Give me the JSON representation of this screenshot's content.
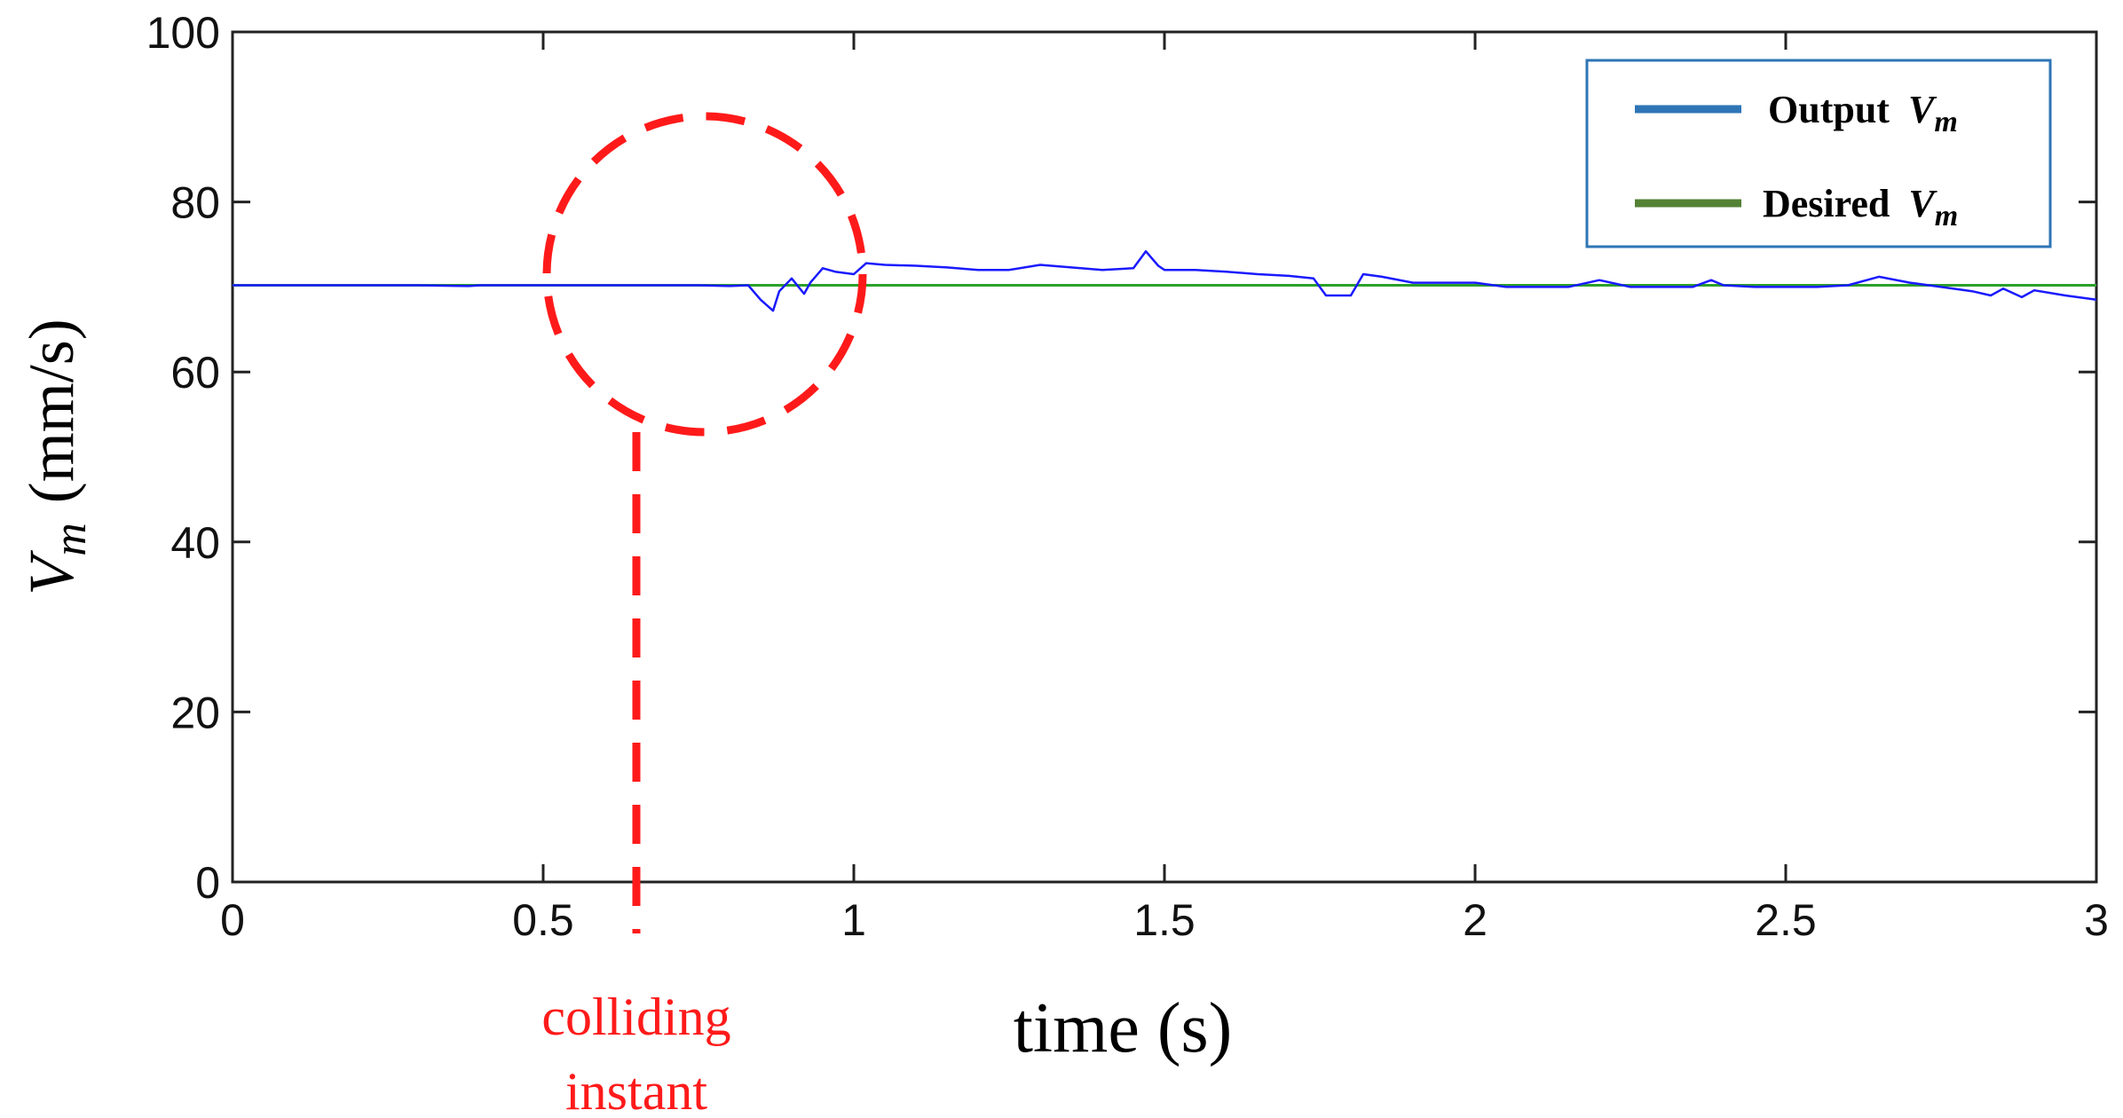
{
  "chart_data": {
    "type": "line",
    "xlabel": "time (s)",
    "ylabel": {
      "var": "V",
      "sub": "m",
      "unit": "(mm/s)"
    },
    "xlim": [
      0,
      3
    ],
    "ylim": [
      0,
      100
    ],
    "xticks": [
      0,
      0.5,
      1,
      1.5,
      2,
      2.5,
      3
    ],
    "xtick_labels": [
      "0",
      "0.5",
      "1",
      "1.5",
      "2",
      "2.5",
      "3"
    ],
    "yticks": [
      0,
      20,
      40,
      60,
      80,
      100
    ],
    "ytick_labels": [
      "0",
      "20",
      "40",
      "60",
      "80",
      "100"
    ],
    "grid": false,
    "legend_position": "top-right",
    "series": [
      {
        "name": "Output",
        "name_var": "V",
        "name_sub": "m",
        "color": "#1a1aff",
        "legend_color": "#2e75b6",
        "x": [
          0,
          0.05,
          0.1,
          0.2,
          0.3,
          0.38,
          0.4,
          0.5,
          0.6,
          0.7,
          0.75,
          0.8,
          0.83,
          0.85,
          0.87,
          0.88,
          0.9,
          0.92,
          0.93,
          0.95,
          0.97,
          1.0,
          1.02,
          1.05,
          1.1,
          1.15,
          1.2,
          1.25,
          1.3,
          1.35,
          1.4,
          1.45,
          1.47,
          1.49,
          1.5,
          1.55,
          1.6,
          1.65,
          1.7,
          1.74,
          1.76,
          1.8,
          1.82,
          1.85,
          1.9,
          2.0,
          2.05,
          2.1,
          2.15,
          2.2,
          2.25,
          2.3,
          2.35,
          2.38,
          2.4,
          2.45,
          2.5,
          2.55,
          2.6,
          2.65,
          2.7,
          2.75,
          2.8,
          2.83,
          2.85,
          2.88,
          2.9,
          2.95,
          3.0
        ],
        "y": [
          70.2,
          70.2,
          70.2,
          70.2,
          70.2,
          70.1,
          70.2,
          70.2,
          70.2,
          70.2,
          70.2,
          70.1,
          70.2,
          68.5,
          67.2,
          69.5,
          71.0,
          69.2,
          70.5,
          72.2,
          71.8,
          71.5,
          72.8,
          72.6,
          72.5,
          72.3,
          72.0,
          72.0,
          72.6,
          72.3,
          72.0,
          72.2,
          74.2,
          72.5,
          72.0,
          72.0,
          71.8,
          71.5,
          71.3,
          71.0,
          69.0,
          69.0,
          71.5,
          71.2,
          70.5,
          70.5,
          70.0,
          70.0,
          70.0,
          70.8,
          70.0,
          70.0,
          70.0,
          70.8,
          70.2,
          70.0,
          70.0,
          70.0,
          70.2,
          71.2,
          70.5,
          70.0,
          69.5,
          69.0,
          69.8,
          68.8,
          69.6,
          69.0,
          68.5
        ]
      },
      {
        "name": "Desired",
        "name_var": "V",
        "name_sub": "m",
        "color": "#2ca02c",
        "legend_color": "#548235",
        "x": [
          0,
          3
        ],
        "y": [
          70.2,
          70.2
        ]
      }
    ],
    "annotations": [
      {
        "type": "dashed-circle",
        "color": "#ff1a1a",
        "center_x": 0.76,
        "center_y": 71.5,
        "text_lines": [
          "colliding",
          "instant"
        ],
        "x": 0.65
      }
    ]
  }
}
